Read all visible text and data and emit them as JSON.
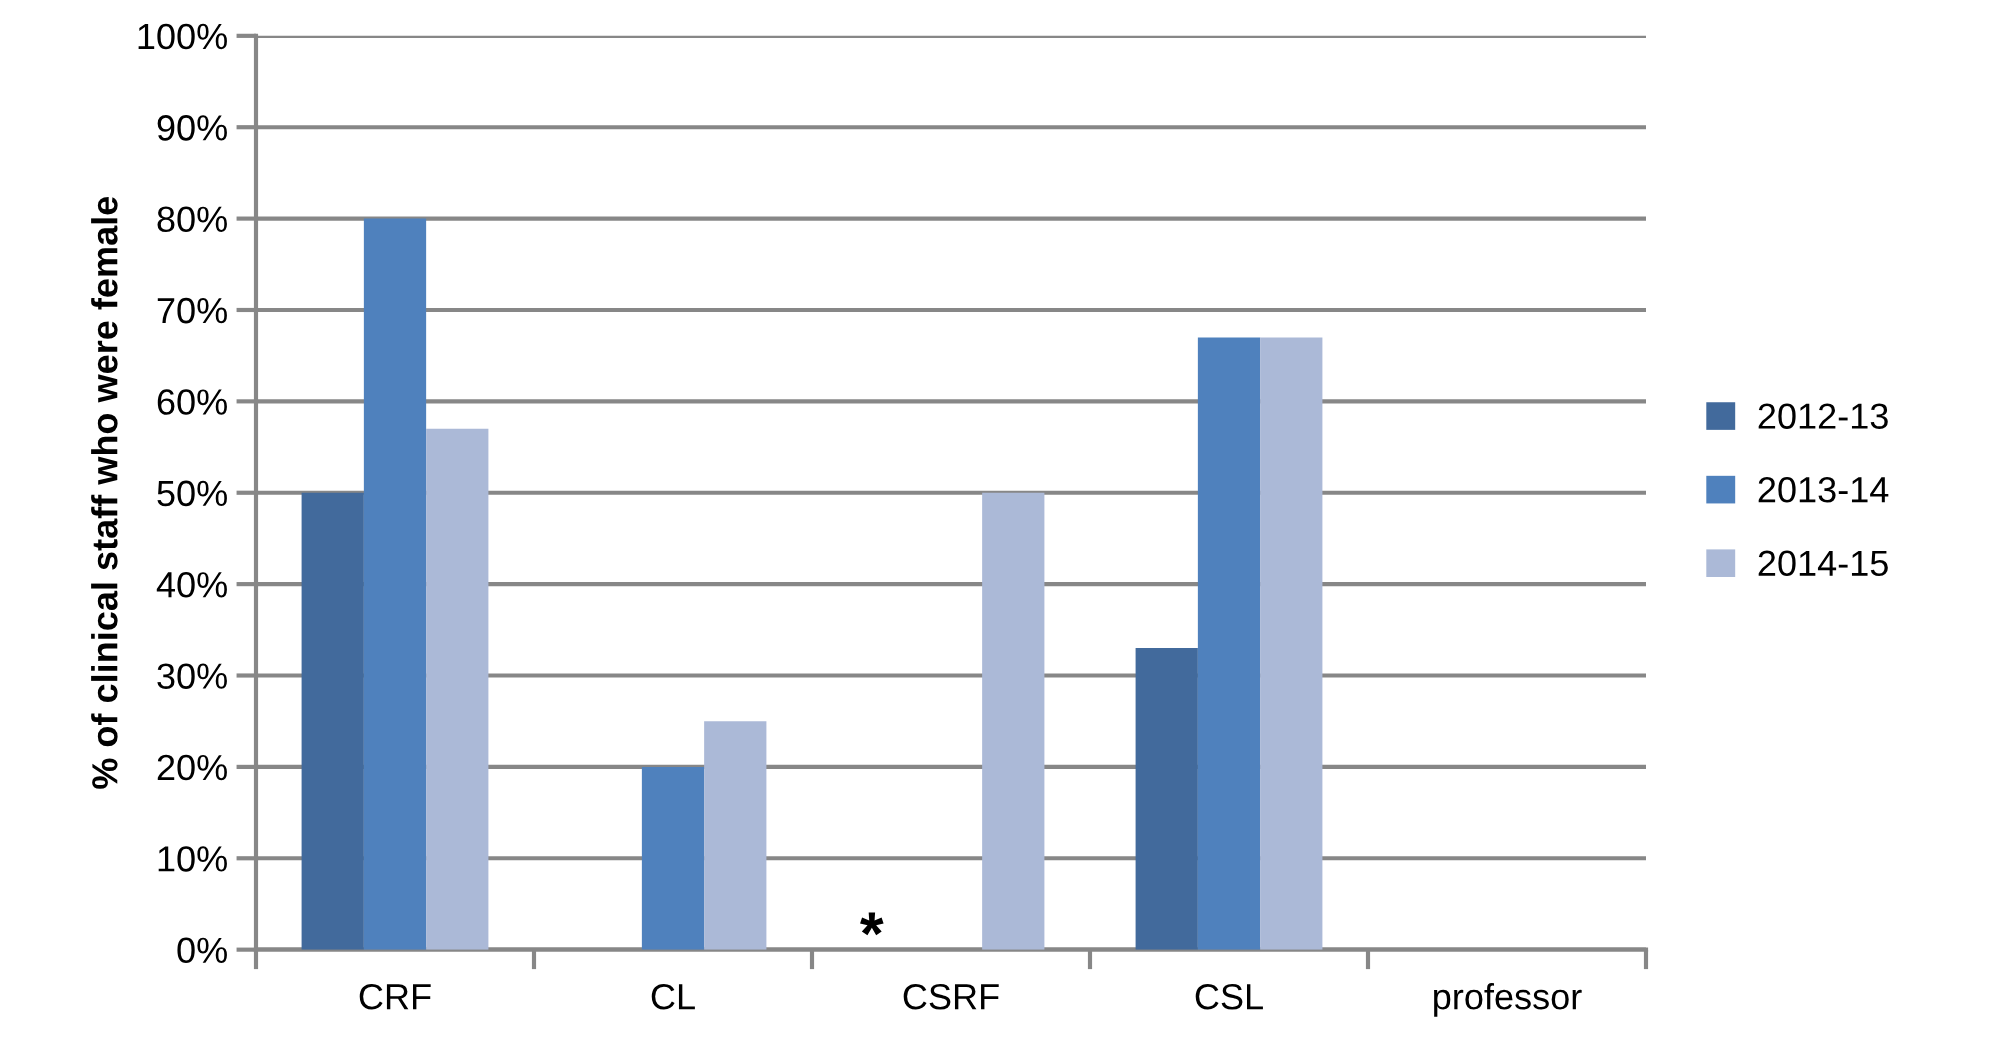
{
  "chart_data": {
    "type": "bar",
    "ylabel": "% of clinical staff who were female",
    "categories": [
      "CRF",
      "CL",
      "CSRF",
      "CSL",
      "professor"
    ],
    "series": [
      {
        "name": "2012-13",
        "color": "#426a9c",
        "values": [
          50,
          null,
          null,
          33,
          null
        ]
      },
      {
        "name": "2013-14",
        "color": "#4f81bd",
        "values": [
          80,
          20,
          null,
          67,
          null
        ]
      },
      {
        "name": "2014-15",
        "color": "#abb9d7",
        "values": [
          57,
          25,
          50,
          67,
          null
        ]
      }
    ],
    "ylim": [
      0,
      100
    ],
    "yticks": [
      {
        "value": 0,
        "label": "0%"
      },
      {
        "value": 10,
        "label": "10%"
      },
      {
        "value": 20,
        "label": "20%"
      },
      {
        "value": 30,
        "label": "30%"
      },
      {
        "value": 40,
        "label": "40%"
      },
      {
        "value": 50,
        "label": "50%"
      },
      {
        "value": 60,
        "label": "60%"
      },
      {
        "value": 70,
        "label": "70%"
      },
      {
        "value": 80,
        "label": "80%"
      },
      {
        "value": 90,
        "label": "90%"
      },
      {
        "value": 100,
        "label": "100%"
      }
    ],
    "annotations": [
      "*"
    ],
    "grid": "y",
    "legend": "right"
  }
}
